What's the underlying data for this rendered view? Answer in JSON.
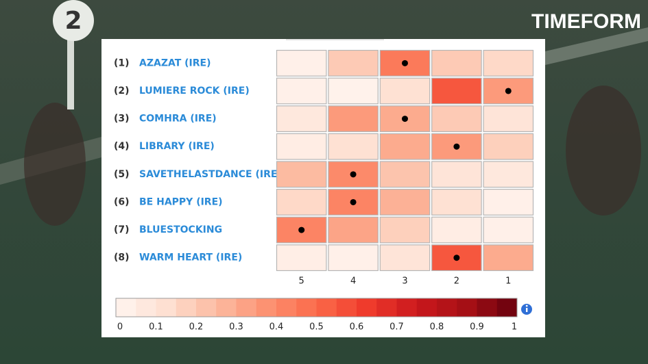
{
  "chart_data": {
    "type": "heatmap",
    "logo": "TIMEFORM",
    "sign": "2",
    "columns": [
      "5",
      "4",
      "3",
      "2",
      "1"
    ],
    "rows": [
      {
        "number": "(1)",
        "name": "AZAZAT (IRE)",
        "values": [
          0.03,
          0.2,
          0.45,
          0.2,
          0.15
        ],
        "pick": "3"
      },
      {
        "number": "(2)",
        "name": "LUMIERE ROCK (IRE)",
        "values": [
          0.03,
          0.02,
          0.12,
          0.55,
          0.35
        ],
        "pick": "1"
      },
      {
        "number": "(3)",
        "name": "COMHRA (IRE)",
        "values": [
          0.08,
          0.35,
          0.3,
          0.2,
          0.1
        ],
        "pick": "3"
      },
      {
        "number": "(4)",
        "name": "LIBRARY (IRE)",
        "values": [
          0.05,
          0.12,
          0.3,
          0.35,
          0.18
        ],
        "pick": "2"
      },
      {
        "number": "(5)",
        "name": "SAVETHELASTDANCE (IRE)",
        "values": [
          0.25,
          0.4,
          0.22,
          0.1,
          0.08
        ],
        "pick": "4"
      },
      {
        "number": "(6)",
        "name": "BE HAPPY (IRE)",
        "values": [
          0.15,
          0.42,
          0.28,
          0.12,
          0.03
        ],
        "pick": "4"
      },
      {
        "number": "(7)",
        "name": "BLUESTOCKING",
        "values": [
          0.42,
          0.32,
          0.18,
          0.05,
          0.03
        ],
        "pick": "5"
      },
      {
        "number": "(8)",
        "name": "WARM HEART (IRE)",
        "values": [
          0.04,
          0.03,
          0.1,
          0.55,
          0.3
        ],
        "pick": "2"
      }
    ],
    "zlim": [
      0,
      1
    ],
    "colorbar_ticks": [
      0,
      0.1,
      0.2,
      0.3,
      0.4,
      0.5,
      0.6,
      0.7,
      0.8,
      0.9,
      1
    ],
    "colorbar_steps": 20,
    "colors": [
      "#fff5f0",
      "#fee0d2",
      "#fcbba1",
      "#fc9272",
      "#fb6a4a",
      "#ef3b2c",
      "#cb181d",
      "#a50f15",
      "#67000d"
    ],
    "pick_color": "#000000"
  }
}
